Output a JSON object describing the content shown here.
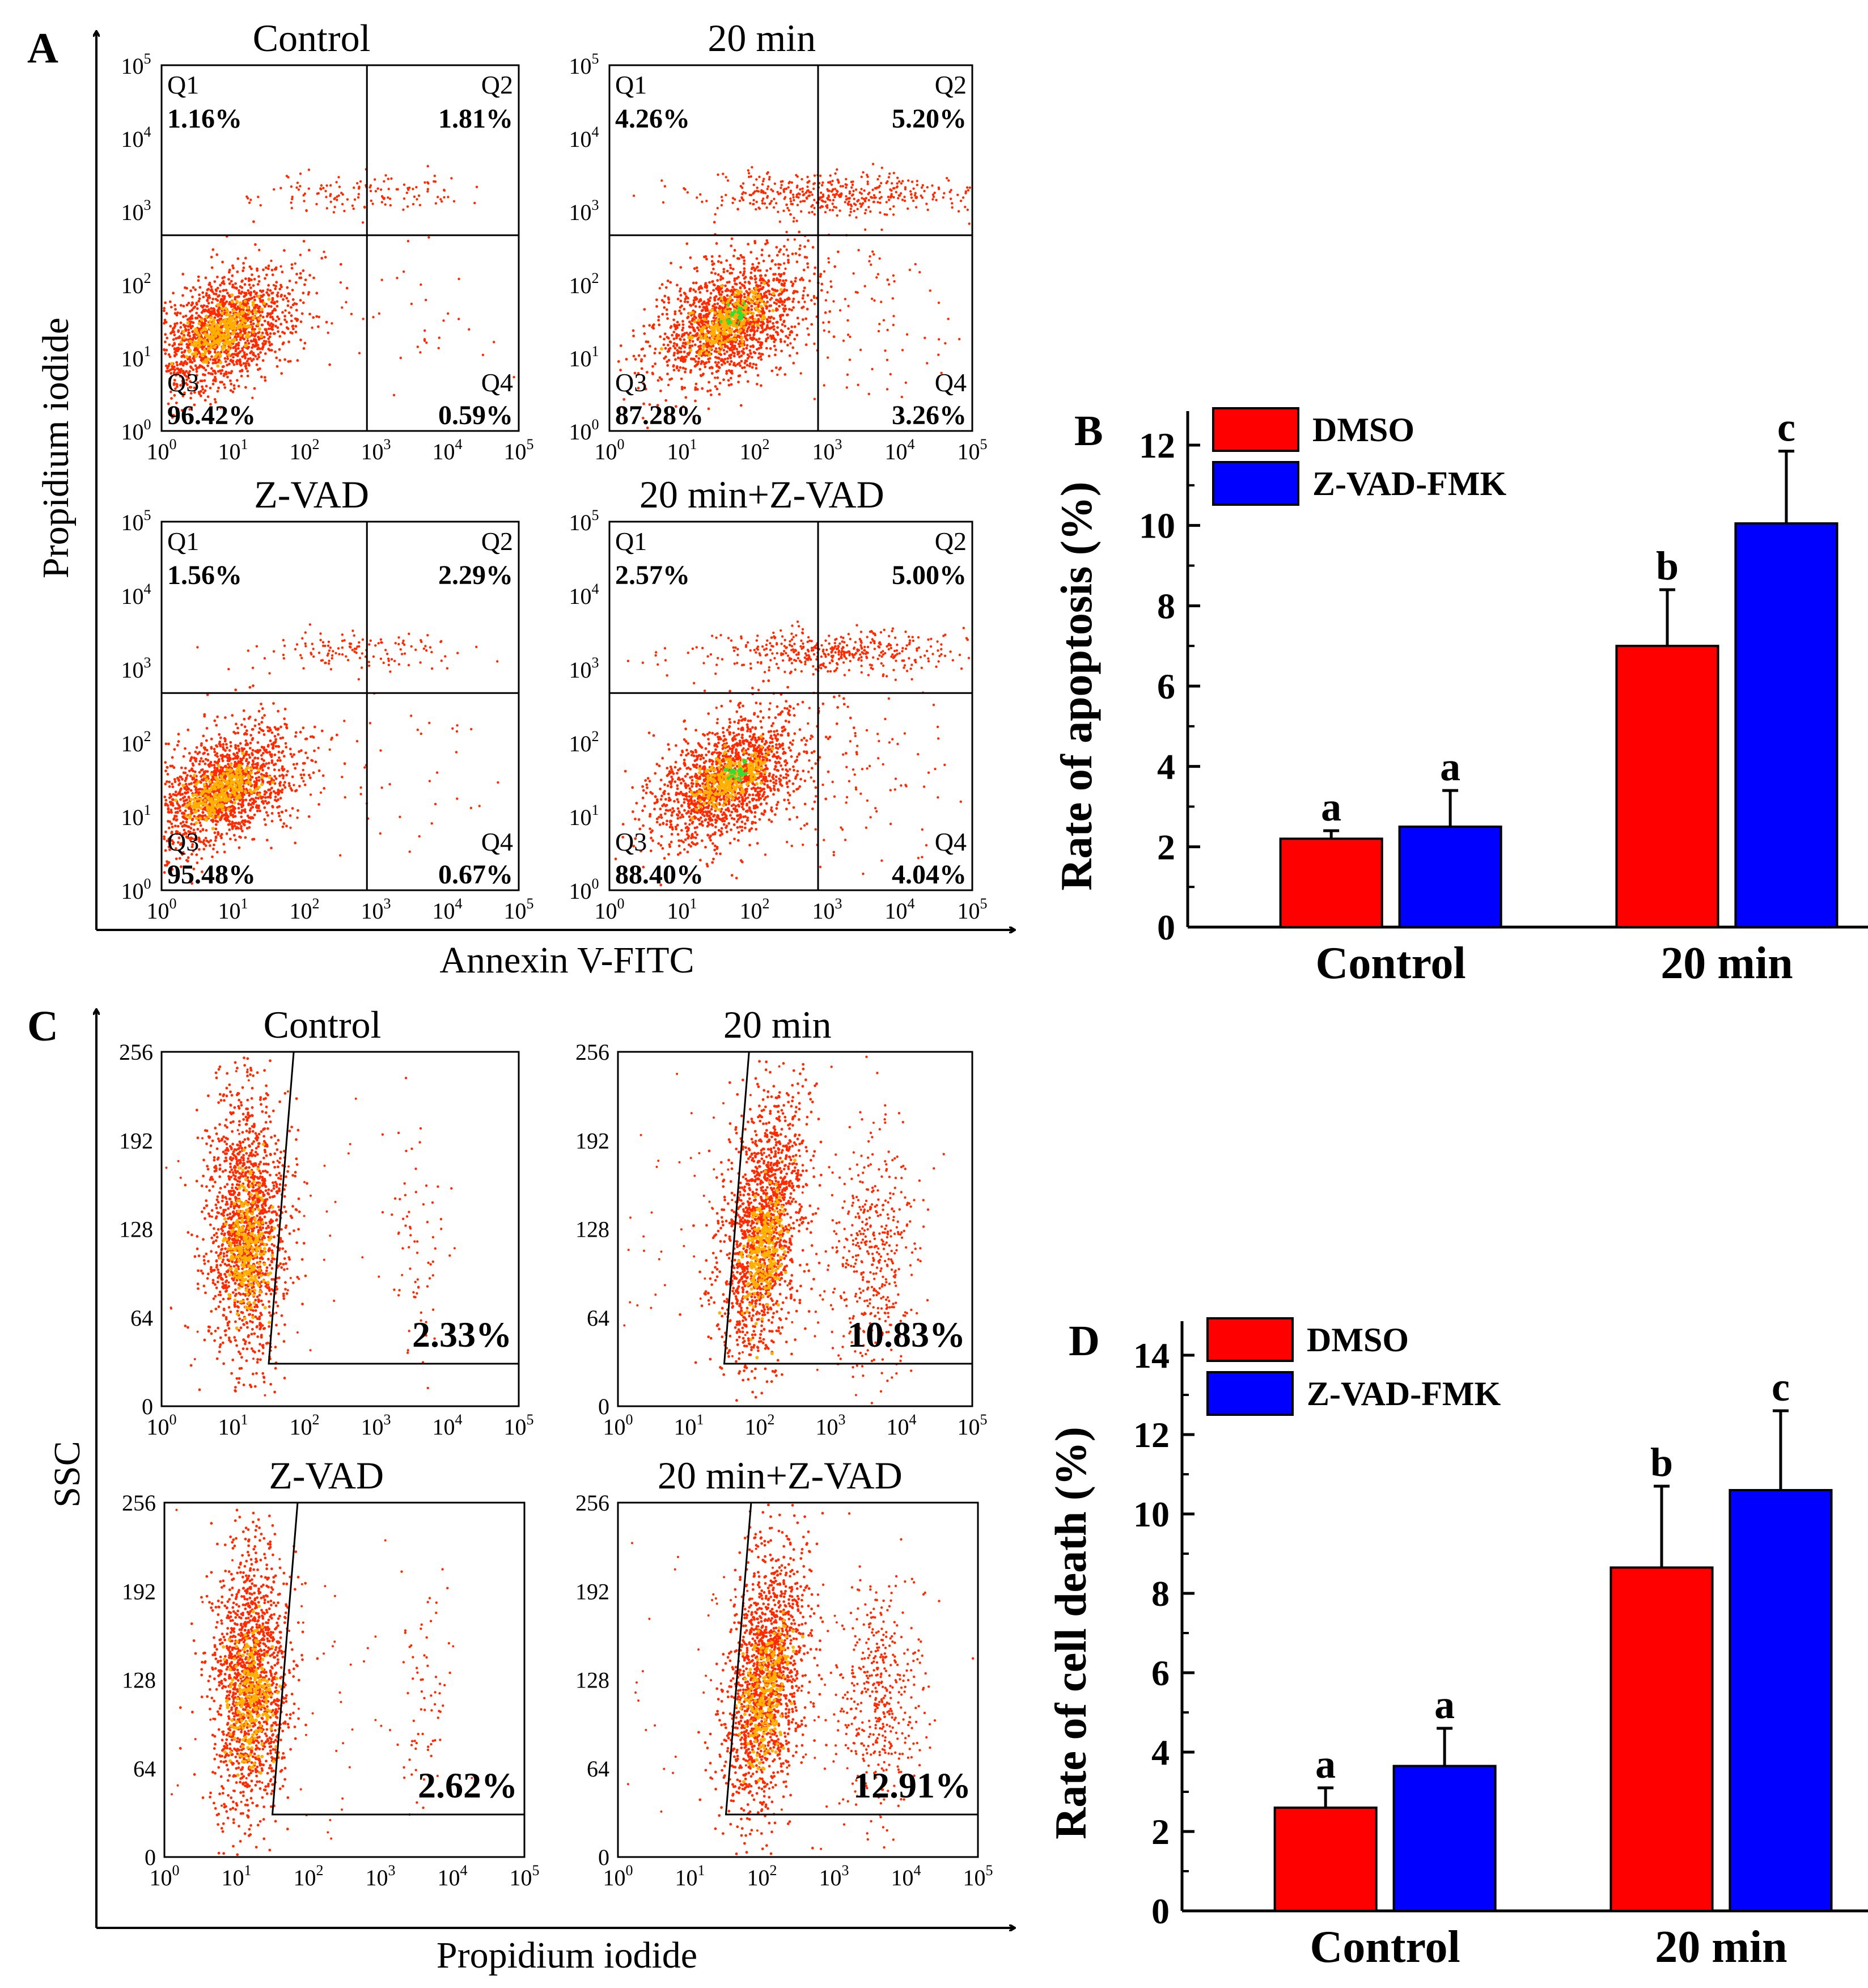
{
  "panel_a": {
    "label": "A",
    "ylabel": "Propidium iodide",
    "xlabel": "Annexin V-FITC",
    "log_ticks": [
      "10",
      "10",
      "10",
      "10",
      "10",
      "10"
    ],
    "log_exps": [
      "0",
      "1",
      "2",
      "3",
      "4",
      "5"
    ],
    "plots": [
      {
        "title": "Control",
        "q1": "Q1",
        "q1_val": "1.16%",
        "q2": "Q2",
        "q2_val": "1.81%",
        "q3": "Q3",
        "q3_val": "96.42%",
        "q4": "Q4",
        "q4_val": "0.59%"
      },
      {
        "title": "20 min",
        "q1": "Q1",
        "q1_val": "4.26%",
        "q2": "Q2",
        "q2_val": "5.20%",
        "q3": "Q3",
        "q3_val": "87.28%",
        "q4": "Q4",
        "q4_val": "3.26%"
      },
      {
        "title": "Z-VAD",
        "q1": "Q1",
        "q1_val": "1.56%",
        "q2": "Q2",
        "q2_val": "2.29%",
        "q3": "Q3",
        "q3_val": "95.48%",
        "q4": "Q4",
        "q4_val": "0.67%"
      },
      {
        "title": "20 min+Z-VAD",
        "q1": "Q1",
        "q1_val": "2.57%",
        "q2": "Q2",
        "q2_val": "5.00%",
        "q3": "Q3",
        "q3_val": "88.40%",
        "q4": "Q4",
        "q4_val": "4.04%"
      }
    ]
  },
  "panel_c": {
    "label": "C",
    "ylabel": "SSC",
    "xlabel": "Propidium iodide",
    "y_ticks": [
      "256",
      "192",
      "128",
      "64",
      "0"
    ],
    "log_ticks": [
      "10",
      "10",
      "10",
      "10",
      "10",
      "10"
    ],
    "log_exps": [
      "0",
      "1",
      "2",
      "3",
      "4",
      "5"
    ],
    "plots": [
      {
        "title": "Control",
        "gate_val": "2.33%"
      },
      {
        "title": "20 min",
        "gate_val": "10.83%"
      },
      {
        "title": "Z-VAD",
        "gate_val": "2.62%"
      },
      {
        "title": "20 min+Z-VAD",
        "gate_val": "12.91%"
      }
    ]
  },
  "colors": {
    "dmso": "#ff0000",
    "zvad": "#0000ff",
    "dot": "#ff2a00",
    "dense": "#ffb000",
    "core": "#33dd33"
  },
  "chart_data": [
    {
      "panel": "B",
      "type": "bar",
      "categories": [
        "Control",
        "20 min"
      ],
      "series": [
        {
          "name": "DMSO",
          "values": [
            2.2,
            7.0
          ],
          "errors": [
            0.2,
            1.4
          ],
          "letters": [
            "a",
            "b"
          ]
        },
        {
          "name": "Z-VAD-FMK",
          "values": [
            2.5,
            10.05
          ],
          "errors": [
            0.9,
            1.8
          ],
          "letters": [
            "a",
            "c"
          ]
        }
      ],
      "ylabel": "Rate of apoptosis (%)",
      "ylim": [
        0,
        12
      ],
      "yticks": [
        "0",
        "2",
        "4",
        "6",
        "8",
        "10",
        "12"
      ],
      "legend": "top-left"
    },
    {
      "panel": "D",
      "type": "bar",
      "categories": [
        "Control",
        "20 min"
      ],
      "series": [
        {
          "name": "DMSO",
          "values": [
            2.6,
            8.65
          ],
          "errors": [
            0.5,
            2.05
          ],
          "letters": [
            "a",
            "b"
          ]
        },
        {
          "name": "Z-VAD-FMK",
          "values": [
            3.65,
            10.6
          ],
          "errors": [
            0.95,
            2.0
          ],
          "letters": [
            "a",
            "c"
          ]
        }
      ],
      "ylabel": "Rate of cell death (%)",
      "ylim": [
        0,
        14
      ],
      "yticks": [
        "0",
        "2",
        "4",
        "6",
        "8",
        "10",
        "12",
        "14"
      ],
      "legend": "top-left"
    }
  ]
}
